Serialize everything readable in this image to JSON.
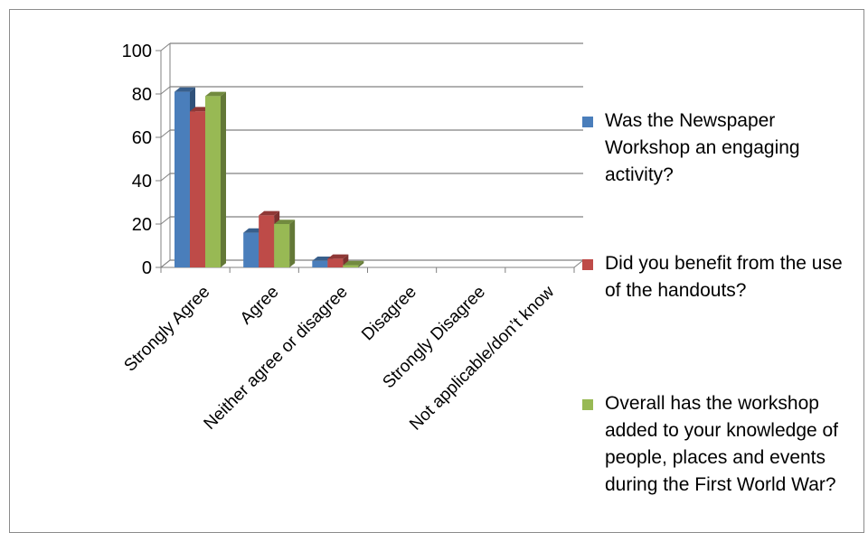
{
  "chart_data": {
    "type": "bar",
    "categories": [
      "Strongly Agree",
      "Agree",
      "Neither agree or disagree",
      "Disagree",
      "Strongly Disagree",
      "Not applicable/don’t know"
    ],
    "series": [
      {
        "name": "Was the Newspaper Workshop an engaging activity?",
        "values": [
          81,
          16,
          3,
          0,
          0,
          0
        ],
        "color": "#4a7ebb"
      },
      {
        "name": "Did you benefit from the use of the handouts?",
        "values": [
          72,
          24,
          4,
          0,
          0,
          0
        ],
        "color": "#be4b48"
      },
      {
        "name": "Overall has the workshop added to your knowledge of people, places and events during the First World War?",
        "values": [
          79,
          20,
          1,
          0,
          0,
          0
        ],
        "color": "#98b954"
      }
    ],
    "y_ticks": [
      "0",
      "20",
      "40",
      "60",
      "80",
      "100"
    ],
    "ylim": [
      0,
      100
    ],
    "grid": true,
    "legend": "right",
    "three_d": true
  }
}
